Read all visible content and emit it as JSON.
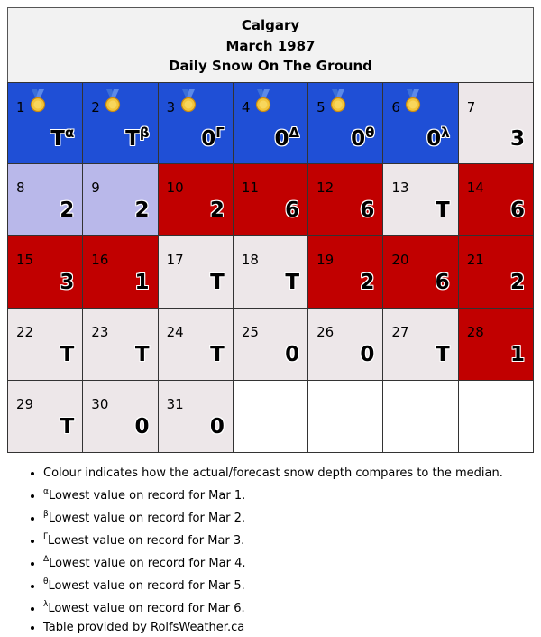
{
  "header": {
    "city": "Calgary",
    "month": "March 1987",
    "subtitle": "Daily Snow On The Ground"
  },
  "colors": {
    "record_low": "#1f4fd6",
    "above_median": "#c10000",
    "below_median": "#b9b8ea",
    "near_median": "#ede7e9",
    "empty": "#ffffff"
  },
  "chart_data": {
    "type": "table",
    "title": "Daily Snow On The Ground",
    "weeks": [
      [
        {
          "day": "1",
          "value": "T",
          "mark": "α",
          "category": "record_low",
          "medal": true
        },
        {
          "day": "2",
          "value": "T",
          "mark": "β",
          "category": "record_low",
          "medal": true
        },
        {
          "day": "3",
          "value": "0",
          "mark": "Γ",
          "category": "record_low",
          "medal": true
        },
        {
          "day": "4",
          "value": "0",
          "mark": "Δ",
          "category": "record_low",
          "medal": true
        },
        {
          "day": "5",
          "value": "0",
          "mark": "θ",
          "category": "record_low",
          "medal": true
        },
        {
          "day": "6",
          "value": "0",
          "mark": "λ",
          "category": "record_low",
          "medal": true
        },
        {
          "day": "7",
          "value": "3",
          "mark": "",
          "category": "near_median",
          "medal": false
        }
      ],
      [
        {
          "day": "8",
          "value": "2",
          "mark": "",
          "category": "below_median",
          "medal": false
        },
        {
          "day": "9",
          "value": "2",
          "mark": "",
          "category": "below_median",
          "medal": false
        },
        {
          "day": "10",
          "value": "2",
          "mark": "",
          "category": "above_median",
          "medal": false
        },
        {
          "day": "11",
          "value": "6",
          "mark": "",
          "category": "above_median",
          "medal": false
        },
        {
          "day": "12",
          "value": "6",
          "mark": "",
          "category": "above_median",
          "medal": false
        },
        {
          "day": "13",
          "value": "T",
          "mark": "",
          "category": "near_median",
          "medal": false
        },
        {
          "day": "14",
          "value": "6",
          "mark": "",
          "category": "above_median",
          "medal": false
        }
      ],
      [
        {
          "day": "15",
          "value": "3",
          "mark": "",
          "category": "above_median",
          "medal": false
        },
        {
          "day": "16",
          "value": "1",
          "mark": "",
          "category": "above_median",
          "medal": false
        },
        {
          "day": "17",
          "value": "T",
          "mark": "",
          "category": "near_median",
          "medal": false
        },
        {
          "day": "18",
          "value": "T",
          "mark": "",
          "category": "near_median",
          "medal": false
        },
        {
          "day": "19",
          "value": "2",
          "mark": "",
          "category": "above_median",
          "medal": false
        },
        {
          "day": "20",
          "value": "6",
          "mark": "",
          "category": "above_median",
          "medal": false
        },
        {
          "day": "21",
          "value": "2",
          "mark": "",
          "category": "above_median",
          "medal": false
        }
      ],
      [
        {
          "day": "22",
          "value": "T",
          "mark": "",
          "category": "near_median",
          "medal": false
        },
        {
          "day": "23",
          "value": "T",
          "mark": "",
          "category": "near_median",
          "medal": false
        },
        {
          "day": "24",
          "value": "T",
          "mark": "",
          "category": "near_median",
          "medal": false
        },
        {
          "day": "25",
          "value": "0",
          "mark": "",
          "category": "near_median",
          "medal": false
        },
        {
          "day": "26",
          "value": "0",
          "mark": "",
          "category": "near_median",
          "medal": false
        },
        {
          "day": "27",
          "value": "T",
          "mark": "",
          "category": "near_median",
          "medal": false
        },
        {
          "day": "28",
          "value": "1",
          "mark": "",
          "category": "above_median",
          "medal": false
        }
      ],
      [
        {
          "day": "29",
          "value": "T",
          "mark": "",
          "category": "near_median",
          "medal": false
        },
        {
          "day": "30",
          "value": "0",
          "mark": "",
          "category": "near_median",
          "medal": false
        },
        {
          "day": "31",
          "value": "0",
          "mark": "",
          "category": "near_median",
          "medal": false
        },
        {
          "day": "",
          "value": "",
          "mark": "",
          "category": "empty",
          "medal": false
        },
        {
          "day": "",
          "value": "",
          "mark": "",
          "category": "empty",
          "medal": false
        },
        {
          "day": "",
          "value": "",
          "mark": "",
          "category": "empty",
          "medal": false
        },
        {
          "day": "",
          "value": "",
          "mark": "",
          "category": "empty",
          "medal": false
        }
      ]
    ]
  },
  "notes": [
    {
      "mark": "",
      "text": "Colour indicates how the actual/forecast snow depth compares to the median."
    },
    {
      "mark": "α",
      "text": "Lowest value on record for Mar 1."
    },
    {
      "mark": "β",
      "text": "Lowest value on record for Mar 2."
    },
    {
      "mark": "Γ",
      "text": "Lowest value on record for Mar 3."
    },
    {
      "mark": "Δ",
      "text": "Lowest value on record for Mar 4."
    },
    {
      "mark": "θ",
      "text": "Lowest value on record for Mar 5."
    },
    {
      "mark": "λ",
      "text": "Lowest value on record for Mar 6."
    },
    {
      "mark": "",
      "text": "Table provided by RolfsWeather.ca"
    }
  ]
}
